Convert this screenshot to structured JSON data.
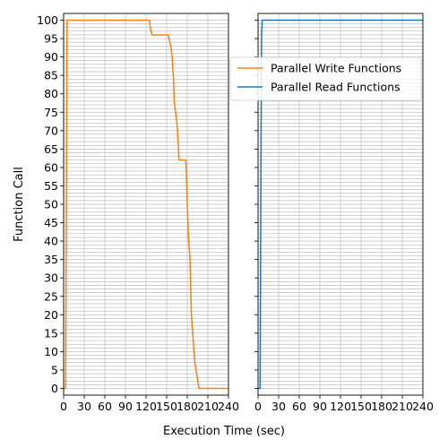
{
  "chart_data": {
    "type": "line",
    "xlabel": "Execution Time (sec)",
    "ylabel": "Function Call",
    "xlim": [
      0,
      240
    ],
    "ylim": [
      0,
      100
    ],
    "x_ticks": [
      0,
      30,
      60,
      90,
      120,
      150,
      180,
      210,
      240
    ],
    "y_ticks": [
      0,
      5,
      10,
      15,
      20,
      25,
      30,
      35,
      40,
      45,
      50,
      55,
      60,
      65,
      70,
      75,
      80,
      85,
      90,
      95,
      100
    ],
    "grid": "x",
    "legend": "top-right",
    "subplots": [
      {
        "series": [
          {
            "name": "Parallel Write Functions",
            "color": "#ff7f0e",
            "x": [
              0,
              3,
              4,
              5,
              125,
              127,
              129,
              152,
              156,
              158,
              159,
              160,
              161,
              165,
              167,
              168,
              169,
              170,
              171,
              178,
              179,
              180,
              181,
              182,
              183,
              184,
              185,
              186,
              188,
              189,
              191,
              197,
              198,
              255
            ],
            "y": [
              0,
              0,
              50,
              100,
              100,
              97,
              96,
              96,
              93,
              90,
              87,
              84,
              78,
              72,
              66,
              62,
              62,
              62,
              62,
              62,
              56,
              50,
              45,
              40,
              38,
              35,
              28,
              20,
              15,
              12,
              7,
              0,
              0,
              0
            ]
          }
        ]
      },
      {
        "series": [
          {
            "name": "Parallel Read Functions",
            "color": "#1f77b4",
            "x": [
              0,
              3,
              4,
              5,
              6,
              240
            ],
            "y": [
              0,
              0,
              50,
              95,
              100,
              100
            ]
          }
        ]
      }
    ]
  }
}
